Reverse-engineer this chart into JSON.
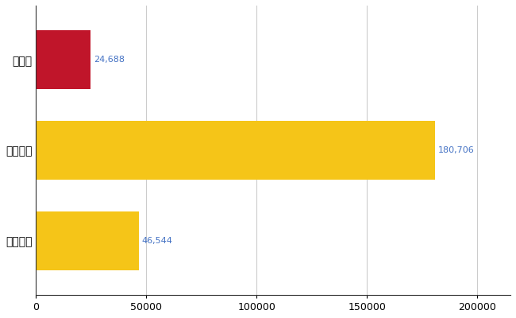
{
  "categories": [
    "全国平均",
    "全国最大",
    "福島県"
  ],
  "values": [
    46544,
    180706,
    24688
  ],
  "bar_colors": [
    "#F5C518",
    "#F5C518",
    "#C0152A"
  ],
  "value_labels": [
    "46,544",
    "180,706",
    "24,688"
  ],
  "value_label_color": "#4472C4",
  "xlim": [
    0,
    215000
  ],
  "background_color": "#FFFFFF",
  "grid_color": "#CCCCCC",
  "tick_label_color": "#000000",
  "bar_height": 0.65,
  "xticks": [
    0,
    50000,
    100000,
    150000,
    200000
  ],
  "xtick_labels": [
    "0",
    "50000",
    "100000",
    "150000",
    "200000"
  ]
}
